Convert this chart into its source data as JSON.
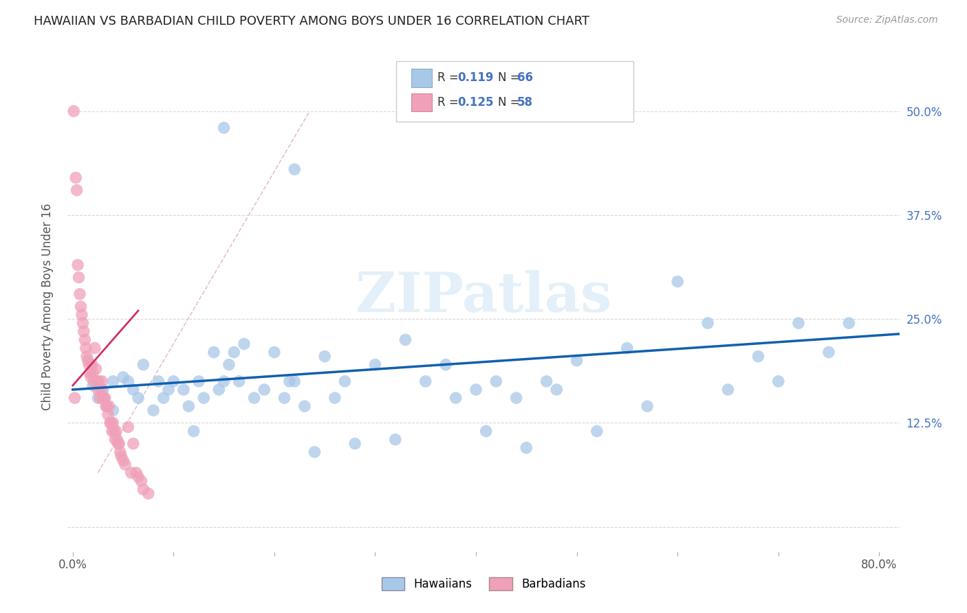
{
  "title": "HAWAIIAN VS BARBADIAN CHILD POVERTY AMONG BOYS UNDER 16 CORRELATION CHART",
  "source": "Source: ZipAtlas.com",
  "ylabel": "Child Poverty Among Boys Under 16",
  "xlim": [
    -0.005,
    0.82
  ],
  "ylim": [
    -0.03,
    0.56
  ],
  "xticks": [
    0.0,
    0.1,
    0.2,
    0.3,
    0.4,
    0.5,
    0.6,
    0.7,
    0.8
  ],
  "xticklabels": [
    "0.0%",
    "",
    "",
    "",
    "",
    "",
    "",
    "",
    "80.0%"
  ],
  "ytick_positions": [
    0.0,
    0.125,
    0.25,
    0.375,
    0.5
  ],
  "yticklabels_right": [
    "",
    "12.5%",
    "25.0%",
    "37.5%",
    "50.0%"
  ],
  "hawaiian_color": "#a8c8e8",
  "barbadian_color": "#f0a0b8",
  "trend_hawaiian_color": "#1060b0",
  "trend_barbadian_color": "#d03060",
  "trend_dashed_color": "#d0a0b0",
  "legend_R_hawaiian": "0.119",
  "legend_N_hawaiian": "66",
  "legend_R_barbadian": "0.125",
  "legend_N_barbadian": "58",
  "watermark": "ZIPatlas",
  "background_color": "#ffffff",
  "grid_color": "#d8d8d8",
  "tick_color": "#4472c4",
  "hawaiian_x": [
    0.02,
    0.025,
    0.03,
    0.04,
    0.04,
    0.05,
    0.055,
    0.06,
    0.065,
    0.07,
    0.08,
    0.085,
    0.09,
    0.095,
    0.1,
    0.11,
    0.115,
    0.12,
    0.125,
    0.13,
    0.14,
    0.145,
    0.15,
    0.155,
    0.16,
    0.165,
    0.17,
    0.18,
    0.19,
    0.2,
    0.21,
    0.215,
    0.22,
    0.23,
    0.24,
    0.25,
    0.26,
    0.27,
    0.28,
    0.3,
    0.32,
    0.33,
    0.35,
    0.37,
    0.38,
    0.4,
    0.41,
    0.42,
    0.44,
    0.45,
    0.47,
    0.48,
    0.5,
    0.52,
    0.55,
    0.57,
    0.6,
    0.63,
    0.65,
    0.68,
    0.7,
    0.72,
    0.75,
    0.77,
    0.22,
    0.15
  ],
  "hawaiian_y": [
    0.17,
    0.155,
    0.165,
    0.175,
    0.14,
    0.18,
    0.175,
    0.165,
    0.155,
    0.195,
    0.14,
    0.175,
    0.155,
    0.165,
    0.175,
    0.165,
    0.145,
    0.115,
    0.175,
    0.155,
    0.21,
    0.165,
    0.175,
    0.195,
    0.21,
    0.175,
    0.22,
    0.155,
    0.165,
    0.21,
    0.155,
    0.175,
    0.175,
    0.145,
    0.09,
    0.205,
    0.155,
    0.175,
    0.1,
    0.195,
    0.105,
    0.225,
    0.175,
    0.195,
    0.155,
    0.165,
    0.115,
    0.175,
    0.155,
    0.095,
    0.175,
    0.165,
    0.2,
    0.115,
    0.215,
    0.145,
    0.295,
    0.245,
    0.165,
    0.205,
    0.175,
    0.245,
    0.21,
    0.245,
    0.43,
    0.48
  ],
  "barbadian_x": [
    0.001,
    0.002,
    0.003,
    0.004,
    0.005,
    0.006,
    0.007,
    0.008,
    0.009,
    0.01,
    0.011,
    0.012,
    0.013,
    0.014,
    0.015,
    0.016,
    0.017,
    0.018,
    0.019,
    0.02,
    0.021,
    0.022,
    0.023,
    0.024,
    0.025,
    0.026,
    0.027,
    0.028,
    0.029,
    0.03,
    0.031,
    0.032,
    0.033,
    0.034,
    0.035,
    0.036,
    0.037,
    0.038,
    0.039,
    0.04,
    0.041,
    0.042,
    0.043,
    0.044,
    0.045,
    0.046,
    0.047,
    0.048,
    0.05,
    0.052,
    0.055,
    0.058,
    0.06,
    0.063,
    0.065,
    0.068,
    0.07,
    0.075
  ],
  "barbadian_y": [
    0.5,
    0.155,
    0.42,
    0.405,
    0.315,
    0.3,
    0.28,
    0.265,
    0.255,
    0.245,
    0.235,
    0.225,
    0.215,
    0.205,
    0.2,
    0.195,
    0.185,
    0.18,
    0.195,
    0.185,
    0.175,
    0.215,
    0.19,
    0.175,
    0.165,
    0.175,
    0.155,
    0.165,
    0.175,
    0.155,
    0.155,
    0.155,
    0.145,
    0.145,
    0.135,
    0.145,
    0.125,
    0.125,
    0.115,
    0.125,
    0.115,
    0.105,
    0.115,
    0.105,
    0.1,
    0.1,
    0.09,
    0.085,
    0.08,
    0.075,
    0.12,
    0.065,
    0.1,
    0.065,
    0.06,
    0.055,
    0.045,
    0.04
  ]
}
